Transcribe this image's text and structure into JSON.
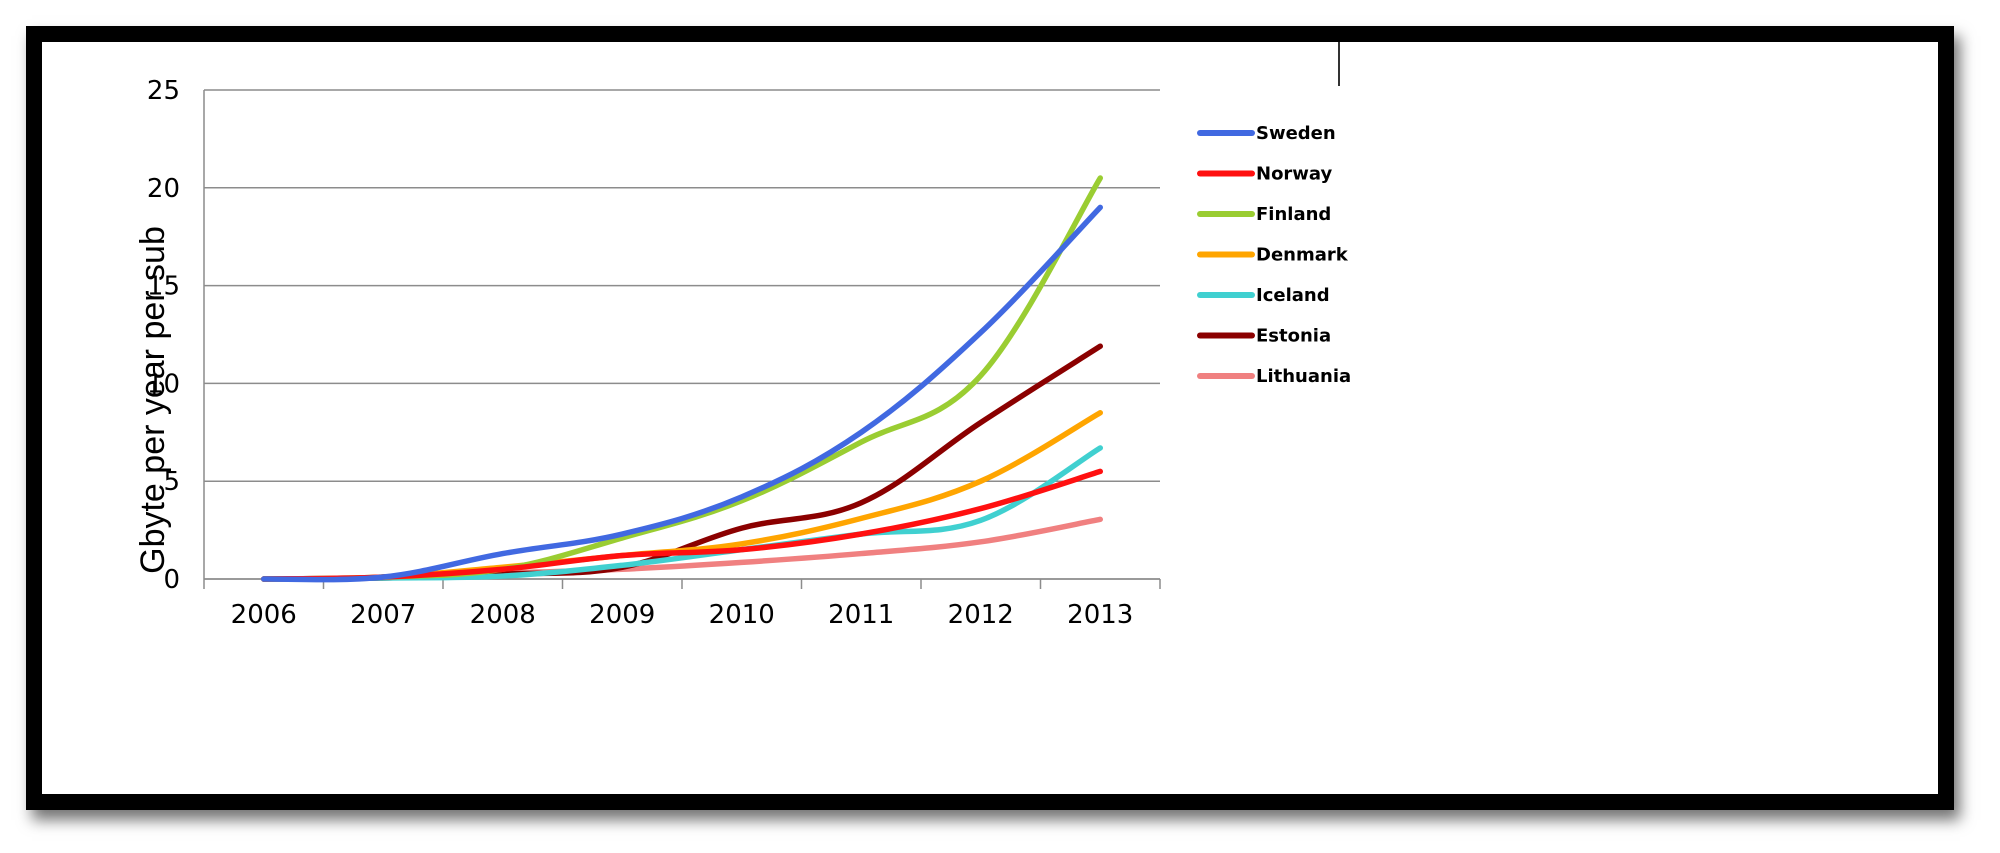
{
  "chart_data": {
    "type": "line",
    "title": "",
    "xlabel": "",
    "ylabel": "Gbyte per year per sub",
    "categories": [
      "2006",
      "2007",
      "2008",
      "2009",
      "2010",
      "2011",
      "2012",
      "2013"
    ],
    "ylim": [
      0,
      25
    ],
    "yticks": [
      "0",
      "5",
      "10",
      "15",
      "20",
      "25"
    ],
    "grid": true,
    "legend_position": "right",
    "series": [
      {
        "name": "Sweden",
        "color": "#4169E1",
        "values": [
          0,
          0.1,
          1.3,
          2.3,
          4.2,
          7.5,
          12.6,
          19
        ]
      },
      {
        "name": "Norway",
        "color": "#FF1010",
        "values": [
          0,
          0.1,
          0.5,
          1.2,
          1.5,
          2.3,
          3.6,
          5.5
        ]
      },
      {
        "name": "Finland",
        "color": "#9ACD32",
        "values": [
          0,
          0.1,
          0.5,
          2.1,
          4.0,
          7.0,
          10.4,
          20.5
        ]
      },
      {
        "name": "Denmark",
        "color": "#FFA500",
        "values": [
          0,
          0.1,
          0.6,
          1.2,
          1.8,
          3.1,
          5.0,
          8.5
        ]
      },
      {
        "name": "Iceland",
        "color": "#40D0D0",
        "values": [
          0,
          0.05,
          0.15,
          0.7,
          1.5,
          2.3,
          3.0,
          6.7
        ]
      },
      {
        "name": "Estonia",
        "color": "#8B0000",
        "values": [
          0,
          0.05,
          0.25,
          0.6,
          2.6,
          3.9,
          8.0,
          11.9
        ]
      },
      {
        "name": "Lithuania",
        "color": "#F08080",
        "values": [
          0,
          0.05,
          0.3,
          0.5,
          0.85,
          1.3,
          1.9,
          3.05
        ]
      }
    ]
  }
}
